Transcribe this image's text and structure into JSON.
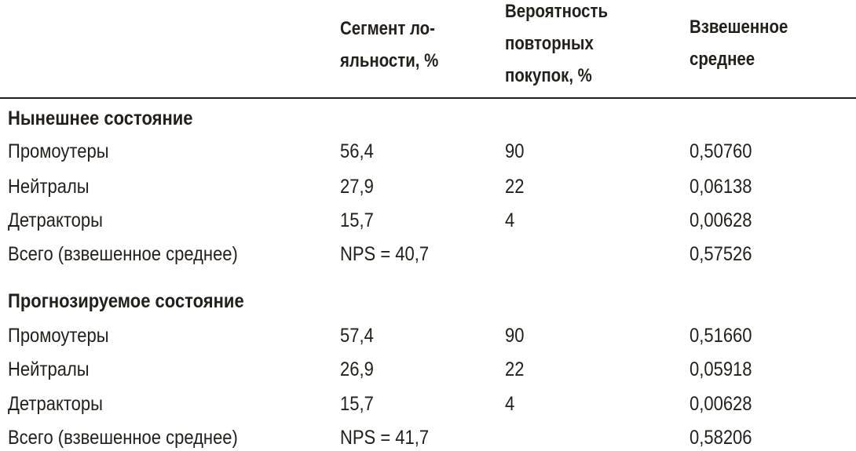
{
  "columns": [
    {
      "lines": [
        "Сегмент ло-",
        "яльности, %"
      ]
    },
    {
      "lines": [
        "Вероятность",
        "повторных",
        "покупок, %"
      ]
    },
    {
      "lines": [
        "Взвешенное",
        "среднее"
      ]
    }
  ],
  "sections": [
    {
      "title": "Нынешнее состояние",
      "rows": [
        {
          "label": "Промоутеры",
          "segment": "56,4",
          "probability": "90",
          "weighted": "0,50760"
        },
        {
          "label": "Нейтралы",
          "segment": "27,9",
          "probability": "22",
          "weighted": "0,06138"
        },
        {
          "label": "Детракторы",
          "segment": "15,7",
          "probability": "4",
          "weighted": "0,00628"
        },
        {
          "label": "Всего (взвешенное среднее)",
          "segment": "NPS = 40,7",
          "probability": "",
          "weighted": "0,57526"
        }
      ]
    },
    {
      "title": "Прогнозируемое состояние",
      "rows": [
        {
          "label": "Промоутеры",
          "segment": "57,4",
          "probability": "90",
          "weighted": "0,51660"
        },
        {
          "label": "Нейтралы",
          "segment": "26,9",
          "probability": "22",
          "weighted": "0,05918"
        },
        {
          "label": "Детракторы",
          "segment": "15,7",
          "probability": "4",
          "weighted": "0,00628"
        },
        {
          "label": "Всего (взвешенное среднее)",
          "segment": "NPS = 41,7",
          "probability": "",
          "weighted": "0,58206"
        }
      ]
    }
  ],
  "colors": {
    "text": "#231f1a",
    "background": "#ffffff"
  }
}
